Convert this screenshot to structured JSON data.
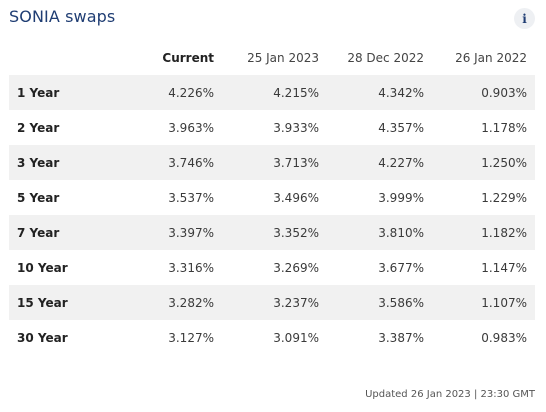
{
  "title": "SONIA swaps",
  "info_icon": "info-icon",
  "columns": [
    "",
    "Current",
    "25 Jan 2023",
    "28 Dec 2022",
    "26 Jan 2022"
  ],
  "rows": [
    {
      "term": "1 Year",
      "values": [
        "4.226%",
        "4.215%",
        "4.342%",
        "0.903%"
      ]
    },
    {
      "term": "2 Year",
      "values": [
        "3.963%",
        "3.933%",
        "4.357%",
        "1.178%"
      ]
    },
    {
      "term": "3 Year",
      "values": [
        "3.746%",
        "3.713%",
        "4.227%",
        "1.250%"
      ]
    },
    {
      "term": "5 Year",
      "values": [
        "3.537%",
        "3.496%",
        "3.999%",
        "1.229%"
      ]
    },
    {
      "term": "7 Year",
      "values": [
        "3.397%",
        "3.352%",
        "3.810%",
        "1.182%"
      ]
    },
    {
      "term": "10 Year",
      "values": [
        "3.316%",
        "3.269%",
        "3.677%",
        "1.147%"
      ]
    },
    {
      "term": "15 Year",
      "values": [
        "3.282%",
        "3.237%",
        "3.586%",
        "1.107%"
      ]
    },
    {
      "term": "30 Year",
      "values": [
        "3.127%",
        "3.091%",
        "3.387%",
        "0.983%"
      ]
    }
  ],
  "footer": "Updated 26 Jan 2023 | 23:30 GMT"
}
